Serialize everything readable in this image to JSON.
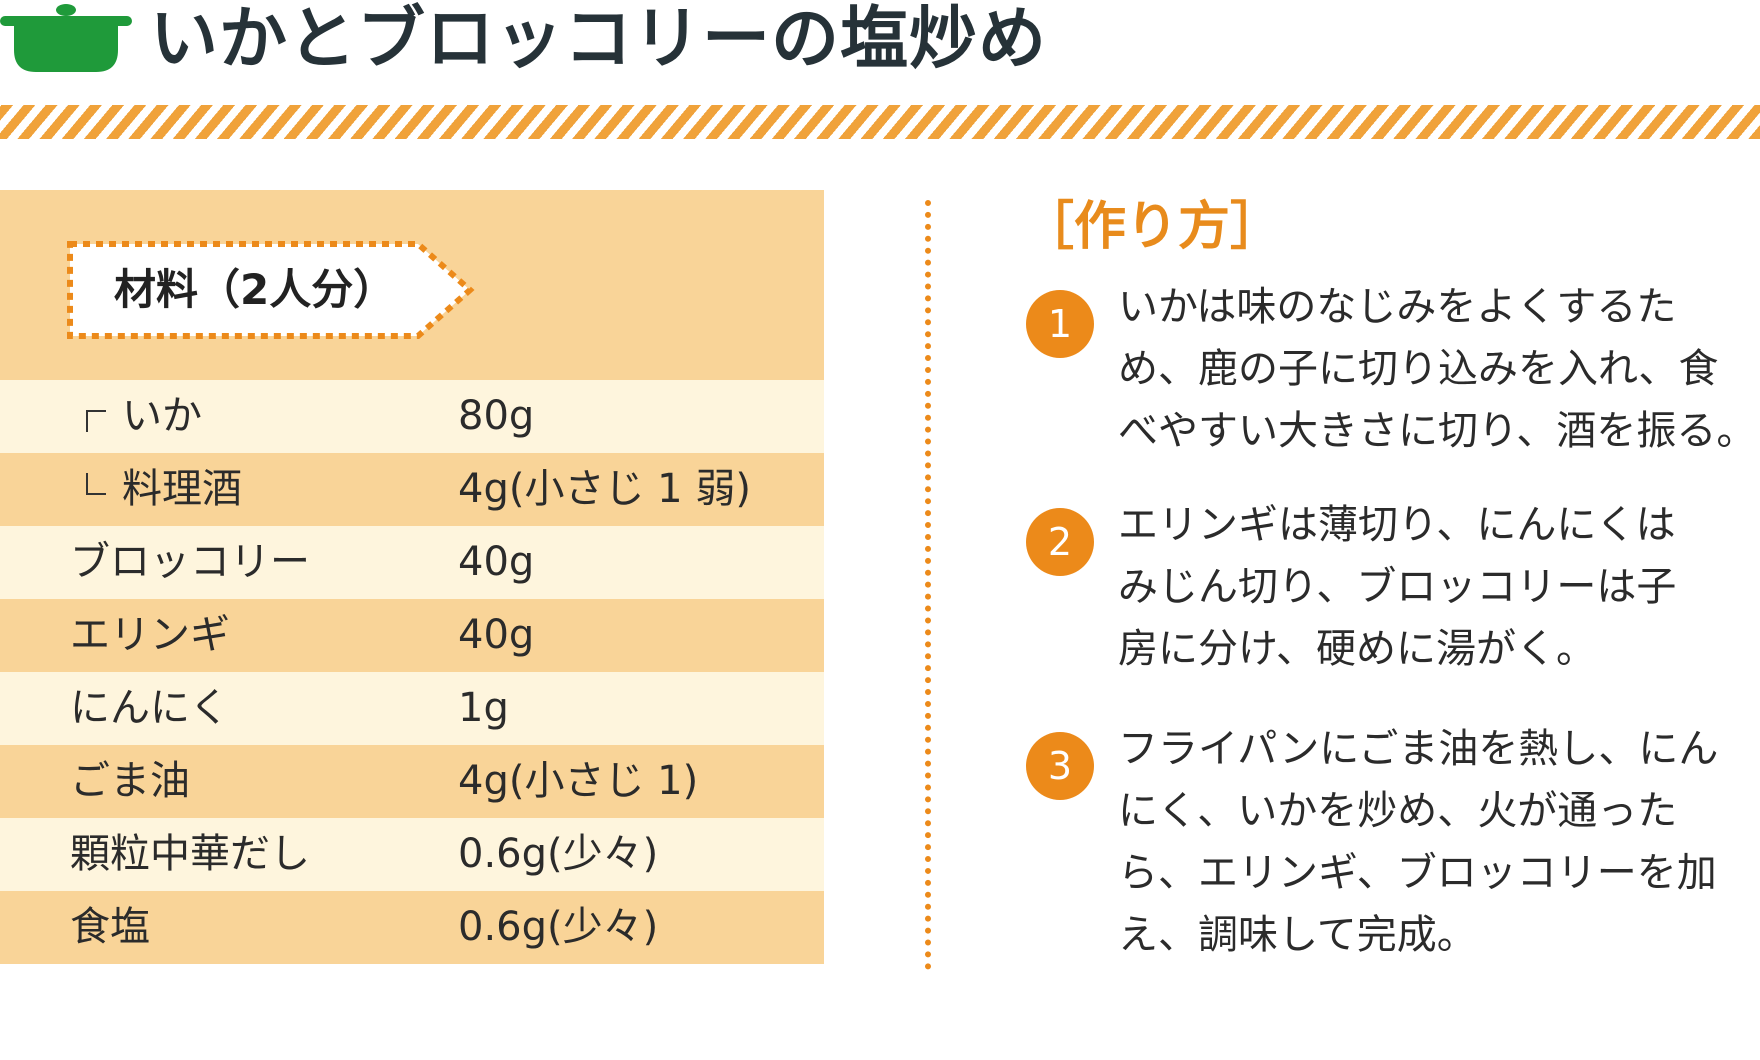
{
  "header": {
    "title": "いかとブロッコリーの塩炒め",
    "icon": "pot-icon",
    "icon_color": "#1f9a3a",
    "stripe_color": "#f0a23a"
  },
  "ingredients": {
    "label": "材料（2人分）",
    "items": [
      {
        "name": "いか",
        "amount": "80g"
      },
      {
        "name": "料理酒",
        "amount": "4g(小さじ 1 弱)"
      },
      {
        "name": "ブロッコリー",
        "amount": "40g"
      },
      {
        "name": "エリンギ",
        "amount": "40g"
      },
      {
        "name": "にんにく",
        "amount": "1g"
      },
      {
        "name": "ごま油",
        "amount": "4g(小さじ 1)"
      },
      {
        "name": "顆粒中華だし",
        "amount": "0.6g(少々)"
      },
      {
        "name": "食塩",
        "amount": "0.6g(少々)"
      }
    ]
  },
  "method": {
    "title": "［作り方］",
    "steps": [
      {
        "num": "1",
        "lines": [
          "いかは味のなじみをよくするた",
          "め、鹿の子に切り込みを入れ、食",
          "べやすい大きさに切り、酒を振る。"
        ]
      },
      {
        "num": "2",
        "lines": [
          "エリンギは薄切り、にんにくは",
          "みじん切り、ブロッコリーは子",
          "房に分け、硬めに湯がく。"
        ]
      },
      {
        "num": "3",
        "lines": [
          "フライパンにごま油を熱し、にん",
          "にく、いかを炒め、火が通った",
          "ら、エリンギ、ブロッコリーを加",
          "え、調味して完成。"
        ]
      }
    ]
  },
  "colors": {
    "accent": "#ec8a1a",
    "panel_dark": "#f9d498",
    "panel_light": "#fef5dd"
  }
}
